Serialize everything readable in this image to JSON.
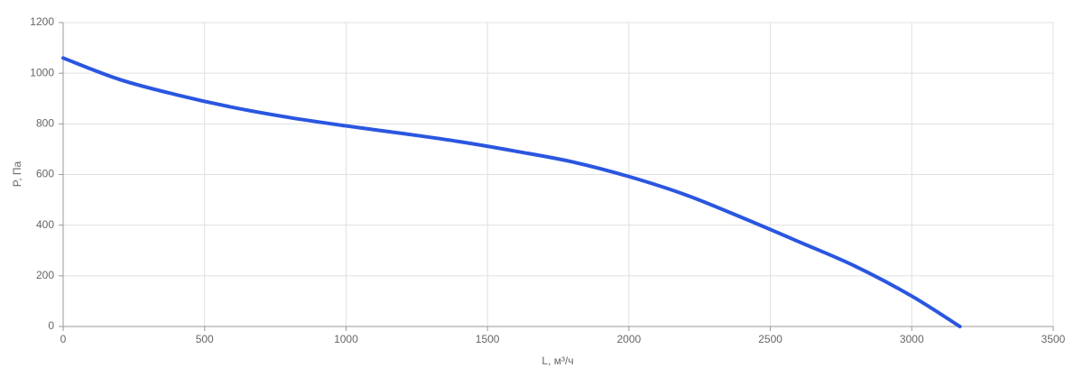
{
  "chart_data": {
    "type": "line",
    "x_label": "L, м³/ч",
    "y_label": "P, Па",
    "x": [
      0,
      200,
      400,
      600,
      800,
      1000,
      1200,
      1400,
      1600,
      1800,
      2000,
      2200,
      2400,
      2600,
      2800,
      3000,
      3170
    ],
    "series": [
      {
        "color": "#2a56e0",
        "values": [
          1060,
          975,
          915,
          865,
          825,
          792,
          762,
          730,
          692,
          650,
          592,
          520,
          430,
          335,
          238,
          120,
          0
        ]
      }
    ],
    "xlim": [
      0,
      3500
    ],
    "xticks": [
      0,
      500,
      1000,
      1500,
      2000,
      2500,
      3000,
      3500
    ],
    "ylim": [
      0,
      1200
    ],
    "yticks": [
      0,
      200,
      400,
      600,
      800,
      1000,
      1200
    ],
    "grid": true
  }
}
